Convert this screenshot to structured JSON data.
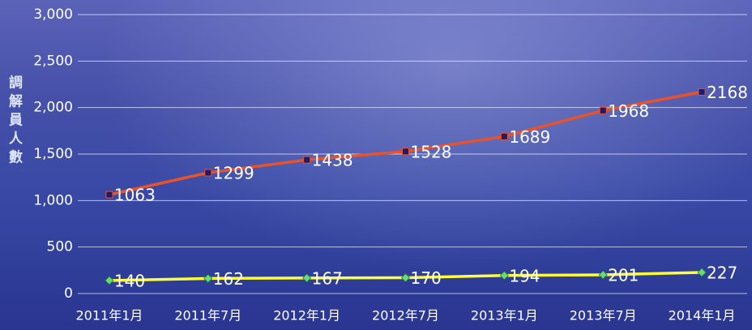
{
  "chart_data": {
    "type": "line",
    "y_label": "調解員人數",
    "categories": [
      "2011年1月",
      "2011年7月",
      "2012年1月",
      "2012年7月",
      "2013年1月",
      "2013年7月",
      "2014年1月"
    ],
    "series": [
      {
        "color": "#e8532b",
        "marker_color": "#1a1a6e",
        "values": [
          1063,
          1299,
          1438,
          1528,
          1689,
          1968,
          2168
        ]
      },
      {
        "color": "#ffff33",
        "marker_color": "#66dd77",
        "values": [
          140,
          162,
          167,
          170,
          194,
          201,
          227
        ]
      }
    ],
    "ylim": [
      0,
      3000
    ],
    "yticks": [
      0,
      500,
      {
        "value": 1000,
        "label": "1,000"
      },
      {
        "value": 1500,
        "label": "1,500"
      },
      {
        "value": 2000,
        "label": "2,000"
      },
      {
        "value": 2500,
        "label": "2,500"
      },
      {
        "value": 3000,
        "label": "3,000"
      }
    ],
    "grid": true
  }
}
